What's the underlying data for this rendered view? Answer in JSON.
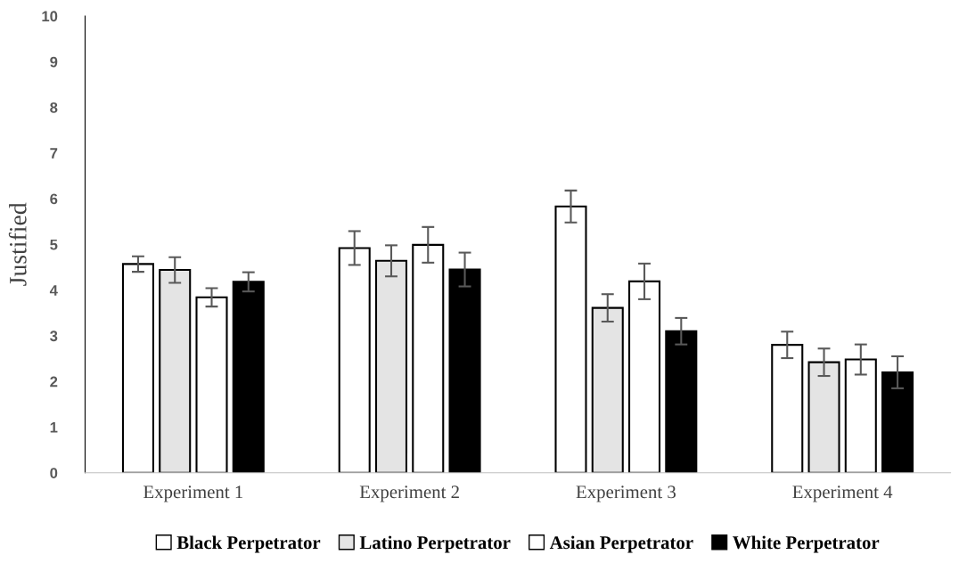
{
  "chart_data": {
    "type": "bar",
    "ylabel": "Justified",
    "categories": [
      "Experiment 1",
      "Experiment 2",
      "Experiment 3",
      "Experiment 4"
    ],
    "series": [
      {
        "name": "Black Perpetrator",
        "color": "#ffffff",
        "values": [
          4.57,
          4.92,
          5.83,
          2.8
        ],
        "errors": [
          0.17,
          0.37,
          0.35,
          0.29
        ]
      },
      {
        "name": "Latino Perpetrator",
        "color": "#e4e4e4",
        "values": [
          4.44,
          4.64,
          3.61,
          2.42
        ],
        "errors": [
          0.28,
          0.34,
          0.3,
          0.3
        ]
      },
      {
        "name": "Asian Perpetrator",
        "color": "#ffffff",
        "values": [
          3.84,
          4.99,
          4.19,
          2.48
        ],
        "errors": [
          0.2,
          0.39,
          0.39,
          0.33
        ]
      },
      {
        "name": "White Perpetrator",
        "color": "#000000",
        "values": [
          4.18,
          4.45,
          3.1,
          2.2
        ],
        "errors": [
          0.21,
          0.37,
          0.29,
          0.35
        ]
      }
    ],
    "ylim": [
      0,
      10
    ],
    "yticks": [
      0,
      1,
      2,
      3,
      4,
      5,
      6,
      7,
      8,
      9,
      10
    ],
    "grid": false,
    "legend": "bottom"
  }
}
